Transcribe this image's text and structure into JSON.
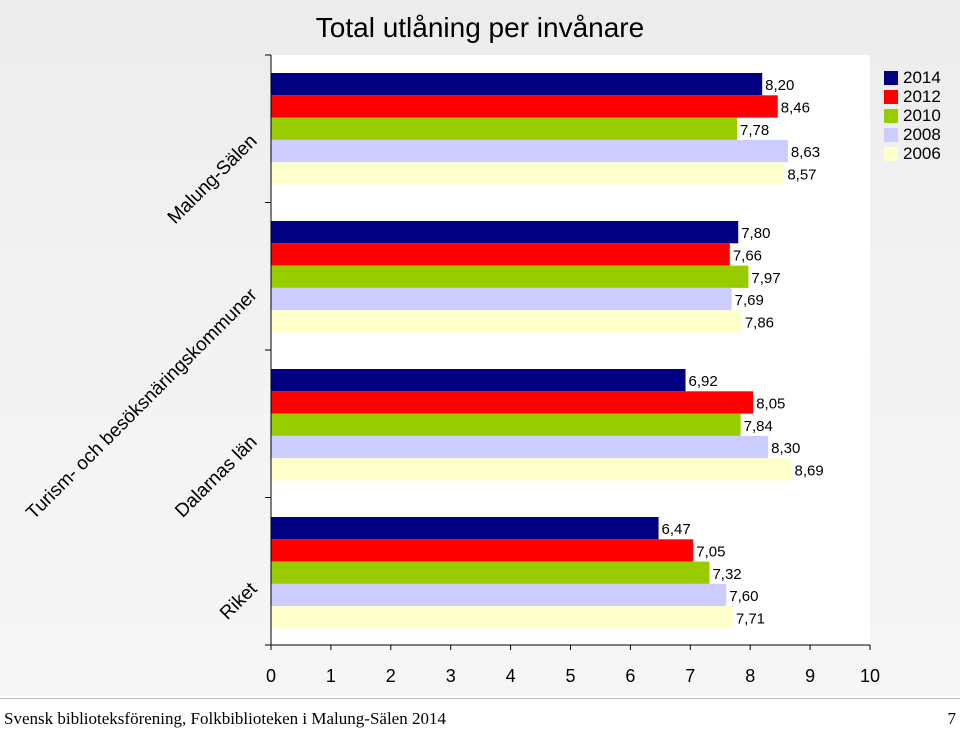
{
  "footer": {
    "text": "Svensk biblioteksförening, Folkbiblioteken i Malung-Sälen 2014",
    "page_number": "7"
  },
  "colors": {
    "2014": "#000080",
    "2012": "#ff0000",
    "2010": "#99cc00",
    "2008": "#ccccff",
    "2006": "#ffffcc"
  },
  "chart_data": {
    "type": "bar",
    "orientation": "horizontal",
    "title": "Total utlåning per invånare",
    "categories": [
      "Malung-Sälen",
      "Turism- och besöksnäringskommuner",
      "Dalarnas län",
      "Riket"
    ],
    "series": [
      {
        "name": "2014",
        "values": [
          8.2,
          7.8,
          6.92,
          6.47
        ],
        "labels": [
          "8,20",
          "7,80",
          "6,92",
          "6,47"
        ]
      },
      {
        "name": "2012",
        "values": [
          8.46,
          7.66,
          8.05,
          7.05
        ],
        "labels": [
          "8,46",
          "7,66",
          "8,05",
          "7,05"
        ]
      },
      {
        "name": "2010",
        "values": [
          7.78,
          7.97,
          7.84,
          7.32
        ],
        "labels": [
          "7,78",
          "7,97",
          "7,84",
          "7,32"
        ]
      },
      {
        "name": "2008",
        "values": [
          8.63,
          7.69,
          8.3,
          7.6
        ],
        "labels": [
          "8,63",
          "7,69",
          "8,30",
          "7,60"
        ]
      },
      {
        "name": "2006",
        "values": [
          8.57,
          7.86,
          8.69,
          7.71
        ],
        "labels": [
          "8,57",
          "7,86",
          "8,69",
          "7,71"
        ]
      }
    ],
    "xlim": [
      0,
      10
    ],
    "xticks": [
      "0",
      "1",
      "2",
      "3",
      "4",
      "5",
      "6",
      "7",
      "8",
      "9",
      "10"
    ],
    "grid": false,
    "legend_position": "top-right"
  }
}
